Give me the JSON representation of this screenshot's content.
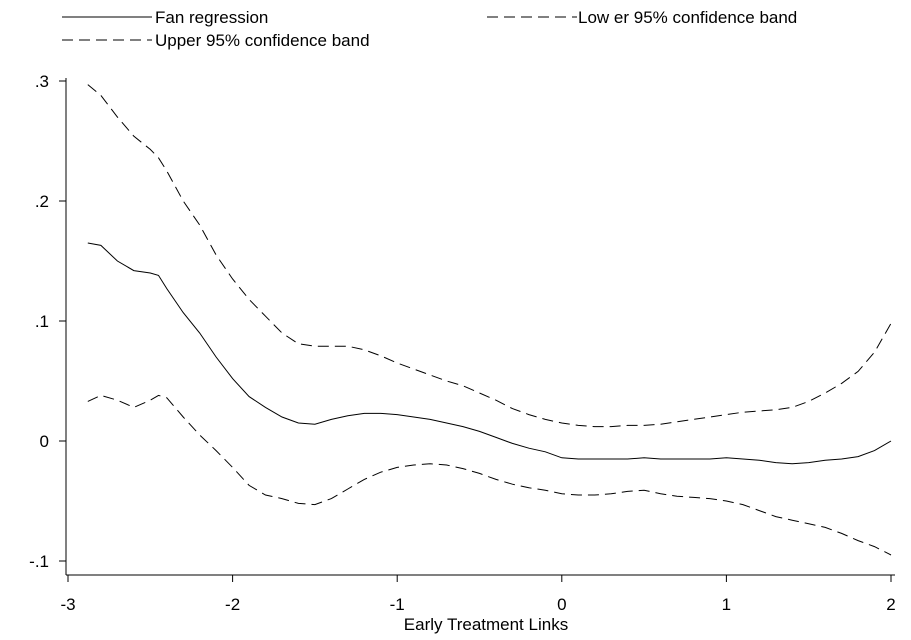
{
  "chart_data": {
    "type": "line",
    "title": "",
    "xlabel": "Early Treatment Links",
    "ylabel": "",
    "xlim": [
      -3,
      2
    ],
    "ylim": [
      -0.1,
      0.3
    ],
    "xticks": [
      {
        "value": -3,
        "label": "-3"
      },
      {
        "value": -2,
        "label": "-2"
      },
      {
        "value": -1,
        "label": "-1"
      },
      {
        "value": 0,
        "label": "0"
      },
      {
        "value": 1,
        "label": "1"
      },
      {
        "value": 2,
        "label": "2"
      }
    ],
    "yticks": [
      {
        "value": -0.1,
        "label": "-.1"
      },
      {
        "value": 0,
        "label": "0"
      },
      {
        "value": 0.1,
        "label": ".1"
      },
      {
        "value": 0.2,
        "label": ".2"
      },
      {
        "value": 0.3,
        "label": ".3"
      }
    ],
    "grid": false,
    "legend_position": "top",
    "series": [
      {
        "name": "Fan regression",
        "style": "solid",
        "color": "#000000",
        "points": [
          [
            -2.88,
            0.165
          ],
          [
            -2.8,
            0.163
          ],
          [
            -2.7,
            0.15
          ],
          [
            -2.6,
            0.142
          ],
          [
            -2.5,
            0.14
          ],
          [
            -2.45,
            0.138
          ],
          [
            -2.4,
            0.127
          ],
          [
            -2.3,
            0.107
          ],
          [
            -2.2,
            0.09
          ],
          [
            -2.1,
            0.07
          ],
          [
            -2.0,
            0.052
          ],
          [
            -1.9,
            0.037
          ],
          [
            -1.8,
            0.028
          ],
          [
            -1.7,
            0.02
          ],
          [
            -1.6,
            0.015
          ],
          [
            -1.5,
            0.014
          ],
          [
            -1.4,
            0.018
          ],
          [
            -1.3,
            0.021
          ],
          [
            -1.2,
            0.023
          ],
          [
            -1.1,
            0.023
          ],
          [
            -1.0,
            0.022
          ],
          [
            -0.9,
            0.02
          ],
          [
            -0.8,
            0.018
          ],
          [
            -0.7,
            0.015
          ],
          [
            -0.6,
            0.012
          ],
          [
            -0.5,
            0.008
          ],
          [
            -0.4,
            0.003
          ],
          [
            -0.3,
            -0.002
          ],
          [
            -0.2,
            -0.006
          ],
          [
            -0.1,
            -0.009
          ],
          [
            0.0,
            -0.014
          ],
          [
            0.1,
            -0.015
          ],
          [
            0.2,
            -0.015
          ],
          [
            0.3,
            -0.015
          ],
          [
            0.4,
            -0.015
          ],
          [
            0.5,
            -0.014
          ],
          [
            0.6,
            -0.015
          ],
          [
            0.7,
            -0.015
          ],
          [
            0.8,
            -0.015
          ],
          [
            0.9,
            -0.015
          ],
          [
            1.0,
            -0.014
          ],
          [
            1.1,
            -0.015
          ],
          [
            1.2,
            -0.016
          ],
          [
            1.3,
            -0.018
          ],
          [
            1.4,
            -0.019
          ],
          [
            1.5,
            -0.018
          ],
          [
            1.6,
            -0.016
          ],
          [
            1.7,
            -0.015
          ],
          [
            1.8,
            -0.013
          ],
          [
            1.9,
            -0.008
          ],
          [
            2.0,
            0.0
          ]
        ]
      },
      {
        "name": "Low er 95% confidence band",
        "style": "dashed",
        "color": "#000000",
        "points": [
          [
            -2.88,
            0.033
          ],
          [
            -2.8,
            0.038
          ],
          [
            -2.7,
            0.034
          ],
          [
            -2.6,
            0.028
          ],
          [
            -2.5,
            0.034
          ],
          [
            -2.45,
            0.038
          ],
          [
            -2.4,
            0.036
          ],
          [
            -2.3,
            0.02
          ],
          [
            -2.2,
            0.005
          ],
          [
            -2.1,
            -0.008
          ],
          [
            -2.0,
            -0.022
          ],
          [
            -1.9,
            -0.037
          ],
          [
            -1.8,
            -0.045
          ],
          [
            -1.7,
            -0.048
          ],
          [
            -1.6,
            -0.052
          ],
          [
            -1.5,
            -0.053
          ],
          [
            -1.4,
            -0.048
          ],
          [
            -1.3,
            -0.04
          ],
          [
            -1.2,
            -0.032
          ],
          [
            -1.1,
            -0.026
          ],
          [
            -1.0,
            -0.022
          ],
          [
            -0.9,
            -0.02
          ],
          [
            -0.8,
            -0.019
          ],
          [
            -0.7,
            -0.02
          ],
          [
            -0.6,
            -0.023
          ],
          [
            -0.5,
            -0.027
          ],
          [
            -0.4,
            -0.032
          ],
          [
            -0.3,
            -0.036
          ],
          [
            -0.2,
            -0.039
          ],
          [
            -0.1,
            -0.041
          ],
          [
            0.0,
            -0.044
          ],
          [
            0.1,
            -0.045
          ],
          [
            0.2,
            -0.045
          ],
          [
            0.3,
            -0.044
          ],
          [
            0.4,
            -0.042
          ],
          [
            0.5,
            -0.041
          ],
          [
            0.6,
            -0.044
          ],
          [
            0.7,
            -0.046
          ],
          [
            0.8,
            -0.047
          ],
          [
            0.9,
            -0.048
          ],
          [
            1.0,
            -0.05
          ],
          [
            1.1,
            -0.053
          ],
          [
            1.2,
            -0.058
          ],
          [
            1.3,
            -0.063
          ],
          [
            1.4,
            -0.066
          ],
          [
            1.5,
            -0.069
          ],
          [
            1.6,
            -0.072
          ],
          [
            1.7,
            -0.077
          ],
          [
            1.8,
            -0.083
          ],
          [
            1.9,
            -0.088
          ],
          [
            2.0,
            -0.095
          ]
        ]
      },
      {
        "name": "Upper 95% confidence band",
        "style": "dashed",
        "color": "#000000",
        "points": [
          [
            -2.88,
            0.297
          ],
          [
            -2.8,
            0.288
          ],
          [
            -2.7,
            0.27
          ],
          [
            -2.6,
            0.254
          ],
          [
            -2.5,
            0.243
          ],
          [
            -2.45,
            0.236
          ],
          [
            -2.4,
            0.225
          ],
          [
            -2.3,
            0.2
          ],
          [
            -2.2,
            0.18
          ],
          [
            -2.1,
            0.155
          ],
          [
            -2.0,
            0.135
          ],
          [
            -1.9,
            0.118
          ],
          [
            -1.8,
            0.104
          ],
          [
            -1.7,
            0.09
          ],
          [
            -1.6,
            0.081
          ],
          [
            -1.5,
            0.079
          ],
          [
            -1.4,
            0.079
          ],
          [
            -1.3,
            0.079
          ],
          [
            -1.2,
            0.076
          ],
          [
            -1.1,
            0.071
          ],
          [
            -1.0,
            0.065
          ],
          [
            -0.9,
            0.06
          ],
          [
            -0.8,
            0.055
          ],
          [
            -0.7,
            0.05
          ],
          [
            -0.6,
            0.046
          ],
          [
            -0.5,
            0.04
          ],
          [
            -0.4,
            0.034
          ],
          [
            -0.3,
            0.027
          ],
          [
            -0.2,
            0.022
          ],
          [
            -0.1,
            0.018
          ],
          [
            0.0,
            0.015
          ],
          [
            0.1,
            0.013
          ],
          [
            0.2,
            0.012
          ],
          [
            0.3,
            0.012
          ],
          [
            0.4,
            0.013
          ],
          [
            0.5,
            0.013
          ],
          [
            0.6,
            0.014
          ],
          [
            0.7,
            0.016
          ],
          [
            0.8,
            0.018
          ],
          [
            0.9,
            0.02
          ],
          [
            1.0,
            0.022
          ],
          [
            1.1,
            0.024
          ],
          [
            1.2,
            0.025
          ],
          [
            1.3,
            0.026
          ],
          [
            1.4,
            0.028
          ],
          [
            1.5,
            0.033
          ],
          [
            1.6,
            0.04
          ],
          [
            1.7,
            0.048
          ],
          [
            1.8,
            0.058
          ],
          [
            1.9,
            0.074
          ],
          [
            2.0,
            0.098
          ]
        ]
      }
    ]
  }
}
